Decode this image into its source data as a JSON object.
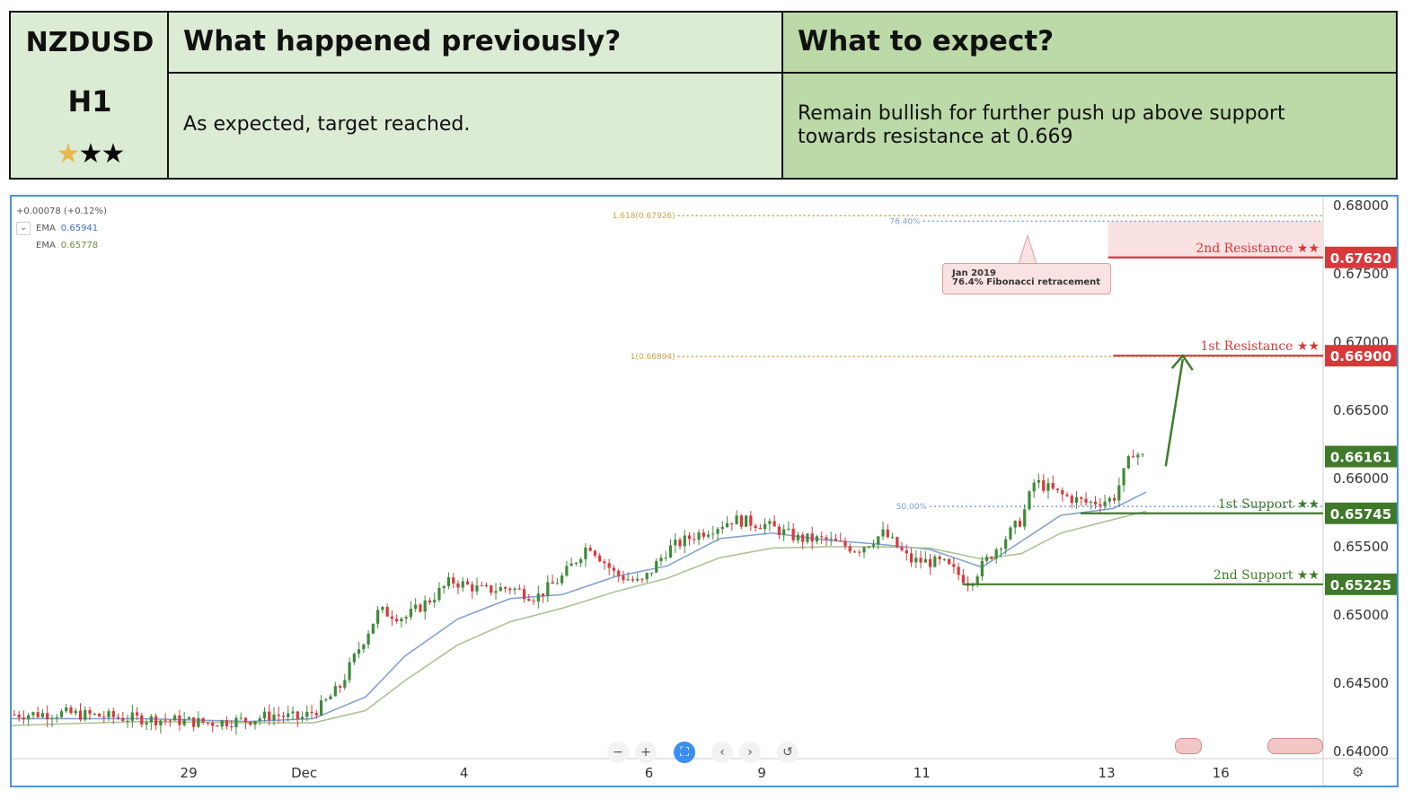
{
  "header": {
    "symbol": "NZDUSD",
    "timeframe": "H1",
    "stars_filled": 1,
    "stars_total": 3,
    "prev_title": "What happened previously?",
    "prev_body": "As expected, target reached.",
    "exp_title": "What to expect?",
    "exp_body": "Remain bullish for further push up above support towards resistance at 0.669",
    "colors": {
      "left": "#dcebd4",
      "right": "#bcd9a8"
    }
  },
  "legend": {
    "change": "+0.00078 (+0.12%)",
    "ema1_label": "EMA",
    "ema1_value": "0.65941",
    "ema2_label": "EMA",
    "ema2_value": "0.65778"
  },
  "note": {
    "line1": "Jan 2019",
    "line2": "76.4% Fibonacci retracement"
  },
  "chart_data": {
    "type": "line",
    "title": "",
    "ylim": [
      0.64,
      0.68
    ],
    "y_ticks": [
      "0.68000",
      "0.67500",
      "0.67000",
      "0.66500",
      "0.66000",
      "0.65500",
      "0.65000",
      "0.64500",
      "0.64000"
    ],
    "x_ticks": [
      {
        "label": "29",
        "pos": 0.135
      },
      {
        "label": "Dec",
        "pos": 0.223
      },
      {
        "label": "4",
        "pos": 0.345
      },
      {
        "label": "6",
        "pos": 0.486
      },
      {
        "label": "9",
        "pos": 0.572
      },
      {
        "label": "11",
        "pos": 0.694
      },
      {
        "label": "13",
        "pos": 0.835
      },
      {
        "label": "16",
        "pos": 0.922
      }
    ],
    "price_path": [
      [
        0.0,
        0.6427
      ],
      [
        0.04,
        0.6428
      ],
      [
        0.08,
        0.6425
      ],
      [
        0.12,
        0.6423
      ],
      [
        0.15,
        0.6421
      ],
      [
        0.18,
        0.6423
      ],
      [
        0.2,
        0.6427
      ],
      [
        0.22,
        0.6424
      ],
      [
        0.235,
        0.6432
      ],
      [
        0.25,
        0.6447
      ],
      [
        0.265,
        0.6476
      ],
      [
        0.28,
        0.6503
      ],
      [
        0.3,
        0.6498
      ],
      [
        0.32,
        0.6512
      ],
      [
        0.335,
        0.6525
      ],
      [
        0.36,
        0.6518
      ],
      [
        0.38,
        0.652
      ],
      [
        0.4,
        0.6513
      ],
      [
        0.42,
        0.6528
      ],
      [
        0.44,
        0.6552
      ],
      [
        0.46,
        0.653
      ],
      [
        0.48,
        0.6523
      ],
      [
        0.5,
        0.6548
      ],
      [
        0.52,
        0.6558
      ],
      [
        0.55,
        0.657
      ],
      [
        0.575,
        0.6566
      ],
      [
        0.6,
        0.6556
      ],
      [
        0.62,
        0.6555
      ],
      [
        0.645,
        0.6548
      ],
      [
        0.665,
        0.656
      ],
      [
        0.685,
        0.654
      ],
      [
        0.71,
        0.6538
      ],
      [
        0.73,
        0.6524
      ],
      [
        0.75,
        0.6548
      ],
      [
        0.77,
        0.657
      ],
      [
        0.78,
        0.6598
      ],
      [
        0.8,
        0.6588
      ],
      [
        0.82,
        0.6582
      ],
      [
        0.84,
        0.6585
      ],
      [
        0.855,
        0.662
      ],
      [
        0.865,
        0.6614
      ]
    ],
    "series": [
      {
        "name": "EMA",
        "values": [
          [
            0.0,
            0.6424
          ],
          [
            0.1,
            0.6424
          ],
          [
            0.18,
            0.6422
          ],
          [
            0.23,
            0.6424
          ],
          [
            0.27,
            0.644
          ],
          [
            0.3,
            0.647
          ],
          [
            0.34,
            0.6497
          ],
          [
            0.38,
            0.6512
          ],
          [
            0.42,
            0.6515
          ],
          [
            0.46,
            0.6528
          ],
          [
            0.5,
            0.6536
          ],
          [
            0.54,
            0.6556
          ],
          [
            0.58,
            0.656
          ],
          [
            0.62,
            0.6555
          ],
          [
            0.66,
            0.6552
          ],
          [
            0.7,
            0.6548
          ],
          [
            0.74,
            0.6535
          ],
          [
            0.77,
            0.6554
          ],
          [
            0.8,
            0.6573
          ],
          [
            0.84,
            0.6578
          ],
          [
            0.865,
            0.659
          ]
        ],
        "color": "#7f9ed6"
      },
      {
        "name": "EMA",
        "values": [
          [
            0.0,
            0.6419
          ],
          [
            0.1,
            0.6422
          ],
          [
            0.18,
            0.6421
          ],
          [
            0.23,
            0.6421
          ],
          [
            0.27,
            0.643
          ],
          [
            0.3,
            0.6452
          ],
          [
            0.34,
            0.6478
          ],
          [
            0.38,
            0.6495
          ],
          [
            0.42,
            0.6505
          ],
          [
            0.46,
            0.6517
          ],
          [
            0.5,
            0.6527
          ],
          [
            0.54,
            0.6542
          ],
          [
            0.58,
            0.6549
          ],
          [
            0.62,
            0.655
          ],
          [
            0.66,
            0.655
          ],
          [
            0.7,
            0.6549
          ],
          [
            0.74,
            0.6541
          ],
          [
            0.77,
            0.6545
          ],
          [
            0.8,
            0.656
          ],
          [
            0.84,
            0.657
          ],
          [
            0.865,
            0.6576
          ]
        ],
        "color": "#a8c190"
      }
    ],
    "levels": [
      {
        "label": "2nd Resistance ★★",
        "value": 0.6762,
        "badge": "0.67620",
        "kind": "resistance",
        "start": 0.836,
        "color": "#d9383a"
      },
      {
        "label": "1st Resistance ★★",
        "value": 0.669,
        "badge": "0.66900",
        "kind": "resistance",
        "start": 0.84,
        "color": "#d9383a"
      },
      {
        "label": "1st Support ★★",
        "value": 0.65745,
        "badge": "0.65745",
        "kind": "support",
        "start": 0.815,
        "color": "#3f7a2a"
      },
      {
        "label": "2nd Support ★★",
        "value": 0.65225,
        "badge": "0.65225",
        "kind": "support",
        "start": 0.725,
        "color": "#3f7a2a"
      }
    ],
    "current_price": {
      "value": 0.66161,
      "badge": "0.66161",
      "color": "#3f7a2a"
    },
    "fib_levels": [
      {
        "label": "1.618(0.67926)",
        "value": 0.67926,
        "start": 0.508,
        "color": "#c9a24a"
      },
      {
        "label": "1(0.66894)",
        "value": 0.66894,
        "start": 0.508,
        "color": "#c9a24a"
      },
      {
        "label": "76.40%",
        "value": 0.67886,
        "start": 0.695,
        "color": "#7ca0d8"
      },
      {
        "label": "50.00%",
        "value": 0.65795,
        "start": 0.7,
        "color": "#7ca0d8"
      }
    ],
    "arrow": {
      "from": [
        0.88,
        0.6609
      ],
      "to": [
        0.893,
        0.669
      ],
      "color": "#3f7a2a"
    }
  }
}
